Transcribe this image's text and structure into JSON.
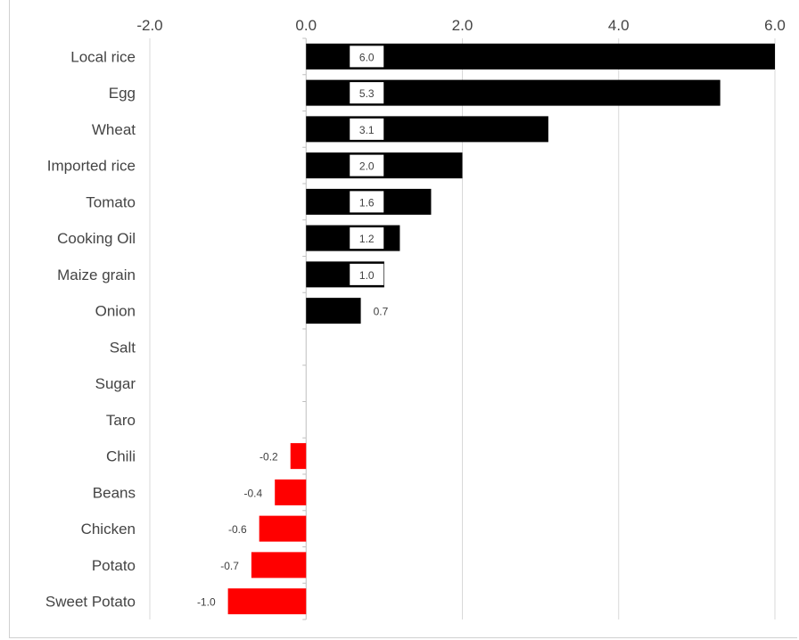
{
  "chart_data": {
    "type": "bar",
    "orientation": "horizontal",
    "title": "",
    "xlabel": "",
    "ylabel": "",
    "xlim": [
      -2.0,
      6.0
    ],
    "x_ticks": [
      "-2.0",
      "0.0",
      "2.0",
      "4.0",
      "6.0"
    ],
    "x_tick_values": [
      -2,
      0,
      2,
      4,
      6
    ],
    "grid": "vertical",
    "categories": [
      "Local rice",
      "Egg",
      "Wheat",
      "Imported rice",
      "Tomato",
      "Cooking Oil",
      "Maize grain",
      "Onion",
      "Salt",
      "Sugar",
      "Taro",
      "Chili",
      "Beans",
      "Chicken",
      "Potato",
      "Sweet Potato"
    ],
    "values": [
      6.0,
      5.3,
      3.1,
      2.0,
      1.6,
      1.2,
      1.0,
      0.7,
      0,
      0,
      0,
      -0.2,
      -0.4,
      -0.6,
      -0.7,
      -1.0
    ],
    "data_labels": [
      "6.0",
      "5.3",
      "3.1",
      "2.0",
      "1.6",
      "1.2",
      "1.0",
      "0.7",
      "",
      "",
      "",
      "-0.2",
      "-0.4",
      "-0.6",
      "-0.7",
      "-1.0"
    ],
    "colors": {
      "positive": "#000000",
      "negative": "#ff0000"
    }
  }
}
